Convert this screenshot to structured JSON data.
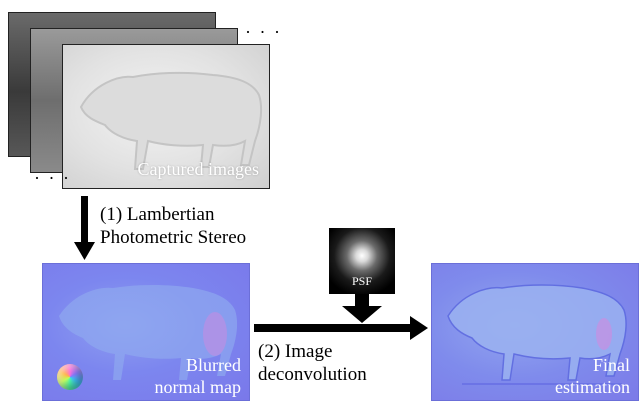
{
  "captured": {
    "label": "Captured images",
    "ellipsis_top": "· · ·",
    "ellipsis_bottom": "· · ·"
  },
  "step1": {
    "line1": "(1) Lambertian",
    "line2": "Photometric Stereo"
  },
  "blurred": {
    "line1": "Blurred",
    "line2": "normal map"
  },
  "psf": {
    "label": "PSF"
  },
  "step2": {
    "line1": "(2) Image",
    "line2": "deconvolution"
  },
  "final": {
    "line1": "Final",
    "line2": "estimation"
  }
}
